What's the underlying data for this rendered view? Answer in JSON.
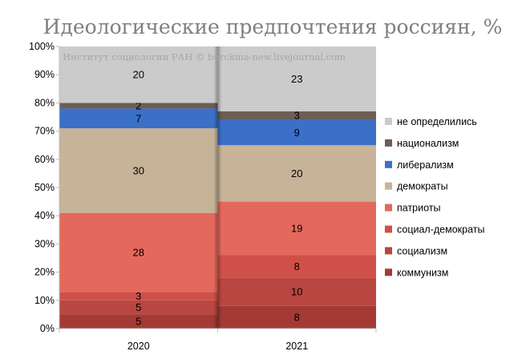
{
  "chart_data": {
    "type": "bar",
    "stacked": true,
    "percent": true,
    "title": "Идеологические предпочтения россиян, %",
    "watermark": "Институт социологии РАН © burckina-new.livejournal.com",
    "categories": [
      "2020",
      "2021"
    ],
    "ylim": [
      0,
      100
    ],
    "yticks": [
      "0%",
      "10%",
      "20%",
      "30%",
      "40%",
      "50%",
      "60%",
      "70%",
      "80%",
      "90%",
      "100%"
    ],
    "legend_position": "right",
    "series": [
      {
        "name": "коммунизм",
        "values": [
          5,
          8
        ],
        "color": "#a33a35",
        "labels": [
          "5",
          "8"
        ]
      },
      {
        "name": "социализм",
        "values": [
          5,
          10
        ],
        "color": "#b94640",
        "labels": [
          "5",
          "10"
        ]
      },
      {
        "name": "социал-демократы",
        "values": [
          3,
          8
        ],
        "color": "#cf5048",
        "labels": [
          "3",
          "8"
        ]
      },
      {
        "name": "патриоты",
        "values": [
          28,
          19
        ],
        "color": "#e4695c",
        "labels": [
          "28",
          "19"
        ]
      },
      {
        "name": "демократы",
        "values": [
          30,
          20
        ],
        "color": "#c7b398",
        "labels": [
          "30",
          "20"
        ]
      },
      {
        "name": "либерализм",
        "values": [
          7,
          9
        ],
        "color": "#3b70c9",
        "labels": [
          "7",
          "9"
        ]
      },
      {
        "name": "национализм",
        "values": [
          2,
          3
        ],
        "color": "#6e5d55",
        "labels": [
          "2",
          "3"
        ]
      },
      {
        "name": "не определились",
        "values": [
          20,
          23
        ],
        "color": "#cbcbcb",
        "labels": [
          "20",
          "23"
        ]
      }
    ]
  }
}
